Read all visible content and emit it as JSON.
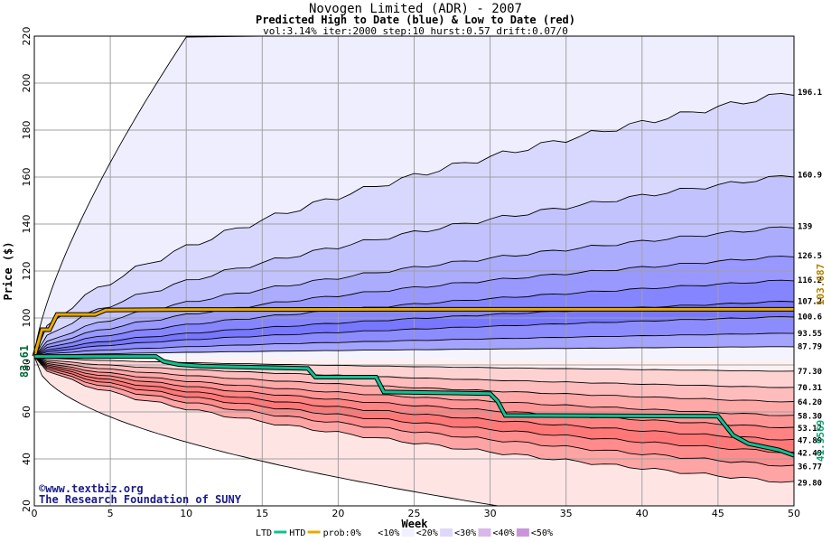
{
  "header": {
    "title": "Novogen Limited (ADR) - 2007",
    "subtitle": "Predicted High to Date (blue) &  Low to Date (red)",
    "params": "vol:3.14% iter:2000 step:10 hurst:0.57 drift:0.07/0"
  },
  "credits": {
    "line1": "©www.textbiz.org",
    "line2": "The Research Foundation of SUNY"
  },
  "colors": {
    "htd": "#e8a800",
    "ltd": "#10c090",
    "blue_band": "#7070ff",
    "red_band": "#ff7070",
    "grid": "#a0a0a0"
  },
  "legend": {
    "ltd": "LTD",
    "htd": "HTD",
    "prob": "prob:0%",
    "b10": "<10%",
    "b20": "<20%",
    "b30": "<30%",
    "b40": "<40%",
    "b50": "<50%"
  },
  "chart_data": {
    "type": "area",
    "title": "Novogen Limited (ADR) - 2007",
    "subtitle": "Predicted High to Date (blue) &  Low to Date (red)",
    "xlabel": "Week",
    "ylabel": "Price ($)",
    "xlim": [
      0,
      50
    ],
    "ylim": [
      20,
      220
    ],
    "x_ticks": [
      0,
      5,
      10,
      15,
      20,
      25,
      30,
      35,
      40,
      45,
      50
    ],
    "y_ticks": [
      20,
      40,
      60,
      80,
      100,
      120,
      140,
      160,
      180,
      200,
      220
    ],
    "grid": true,
    "start_price_label": "83.61",
    "start_price": 83.61,
    "htd_end_label": "103.687",
    "ltd_end_label": "41.5569",
    "upper_quantiles": [
      {
        "label": "196.1",
        "end": 196.1
      },
      {
        "label": "160.9",
        "end": 160.9
      },
      {
        "label": "139",
        "end": 139
      },
      {
        "label": "126.5",
        "end": 126.5
      },
      {
        "label": "116.2",
        "end": 116.2
      },
      {
        "label": "107.2",
        "end": 107.2
      },
      {
        "label": "100.6",
        "end": 100.6
      },
      {
        "label": "93.55",
        "end": 93.55
      },
      {
        "label": "87.79",
        "end": 87.79
      }
    ],
    "lower_quantiles": [
      {
        "label": "77.30",
        "end": 77.3
      },
      {
        "label": "70.31",
        "end": 70.31
      },
      {
        "label": "64.20",
        "end": 64.2
      },
      {
        "label": "58.30",
        "end": 58.3
      },
      {
        "label": "53.12",
        "end": 53.12
      },
      {
        "label": "47.89",
        "end": 47.89
      },
      {
        "label": "42.49",
        "end": 42.49
      },
      {
        "label": "36.77",
        "end": 36.77
      },
      {
        "label": "29.80",
        "end": 29.8
      }
    ],
    "outer_upper_end": 220,
    "outer_lower_end": 20,
    "series": [
      {
        "name": "HTD",
        "x": [
          0,
          0.5,
          1,
          1.5,
          4,
          4.7,
          10,
          20,
          30,
          40,
          50
        ],
        "y": [
          83.61,
          95,
          95,
          101.5,
          101.5,
          103.4,
          103.6,
          103.65,
          103.68,
          103.68,
          103.687
        ]
      },
      {
        "name": "LTD",
        "x": [
          0,
          8,
          8.5,
          9.5,
          11,
          18,
          18.5,
          22.5,
          23,
          30,
          30.5,
          31,
          45,
          46,
          47,
          49,
          50
        ],
        "y": [
          83.61,
          83.61,
          81.5,
          80.2,
          79.5,
          78.5,
          74.8,
          74.8,
          68.5,
          67.8,
          64.5,
          58.5,
          58.2,
          50,
          46.5,
          43.8,
          41.5569
        ]
      }
    ]
  }
}
